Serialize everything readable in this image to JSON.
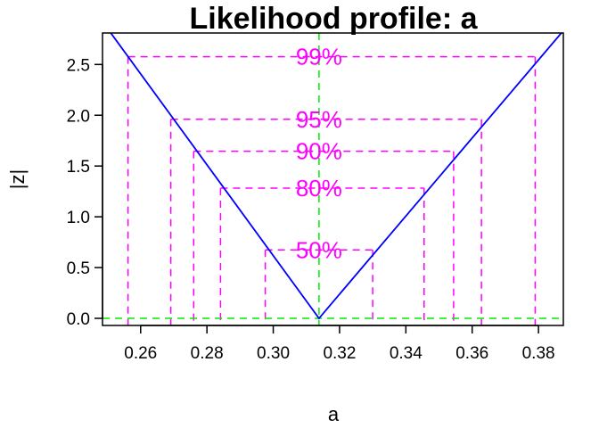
{
  "chart_data": {
    "type": "line",
    "title": "Likelihood profile: a",
    "xlabel": "a",
    "ylabel": "|z|",
    "xlim": [
      0.2485,
      0.3875
    ],
    "ylim": [
      -0.07,
      2.81
    ],
    "xticks": [
      0.26,
      0.28,
      0.3,
      0.32,
      0.34,
      0.36,
      0.38
    ],
    "xtick_labels": [
      "0.26",
      "0.28",
      "0.30",
      "0.32",
      "0.34",
      "0.36",
      "0.38"
    ],
    "yticks": [
      0.0,
      0.5,
      1.0,
      1.5,
      2.0,
      2.5
    ],
    "ytick_labels": [
      "0.0",
      "0.5",
      "1.0",
      "1.5",
      "2.0",
      "2.5"
    ],
    "grid": false,
    "profile": {
      "x": [
        0.251,
        0.3138,
        0.3869
      ],
      "y": [
        2.81,
        0.0,
        2.81
      ],
      "color": "#0000ff"
    },
    "mle": {
      "x": 0.3138,
      "color": "#00ee00"
    },
    "confidence_intervals": [
      {
        "label": "50%",
        "z": 0.674,
        "lower": 0.2976,
        "upper": 0.33
      },
      {
        "label": "80%",
        "z": 1.282,
        "lower": 0.2841,
        "upper": 0.3455
      },
      {
        "label": "90%",
        "z": 1.645,
        "lower": 0.276,
        "upper": 0.3544
      },
      {
        "label": "95%",
        "z": 1.96,
        "lower": 0.2691,
        "upper": 0.3628
      },
      {
        "label": "99%",
        "z": 2.576,
        "lower": 0.2562,
        "upper": 0.379
      }
    ],
    "ci_color": "#ff00ff"
  }
}
